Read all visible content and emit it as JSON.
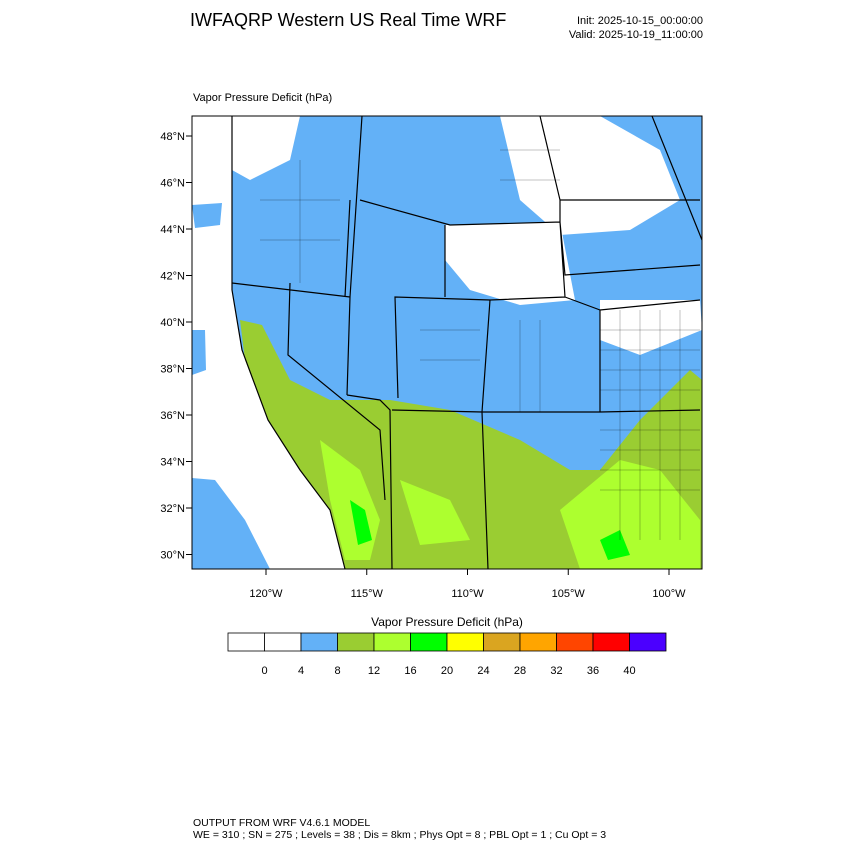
{
  "header": {
    "title": "IWFAQRP Western US Real Time WRF",
    "init": "Init: 2025-10-15_00:00:00",
    "valid": "Valid: 2025-10-19_11:00:00"
  },
  "map": {
    "subtitle": "Vapor Pressure Deficit   (hPa)",
    "lat_labels": [
      "48°N",
      "46°N",
      "44°N",
      "42°N",
      "40°N",
      "38°N",
      "36°N",
      "34°N",
      "32°N",
      "30°N"
    ],
    "lon_labels": [
      "120°W",
      "115°W",
      "110°W",
      "105°W",
      "100°W"
    ]
  },
  "colorbar": {
    "title": "Vapor Pressure Deficit  (hPa)",
    "colors": [
      "#ffffff",
      "#ffffff",
      "#63b1f7",
      "#9acd32",
      "#adff2f",
      "#00ff00",
      "#ffff00",
      "#daa520",
      "#ffa500",
      "#ff4500",
      "#ff0000",
      "#4b00ff"
    ],
    "levels": [
      0,
      4,
      8,
      12,
      16,
      20,
      24,
      28,
      32,
      36,
      40
    ]
  },
  "footer": {
    "line1": "OUTPUT FROM WRF V4.6.1 MODEL",
    "line2": "WE = 310 ; SN = 275 ; Levels = 38 ; Dis = 8km ; Phys Opt = 8 ; PBL Opt = 1 ; Cu Opt = 3"
  }
}
